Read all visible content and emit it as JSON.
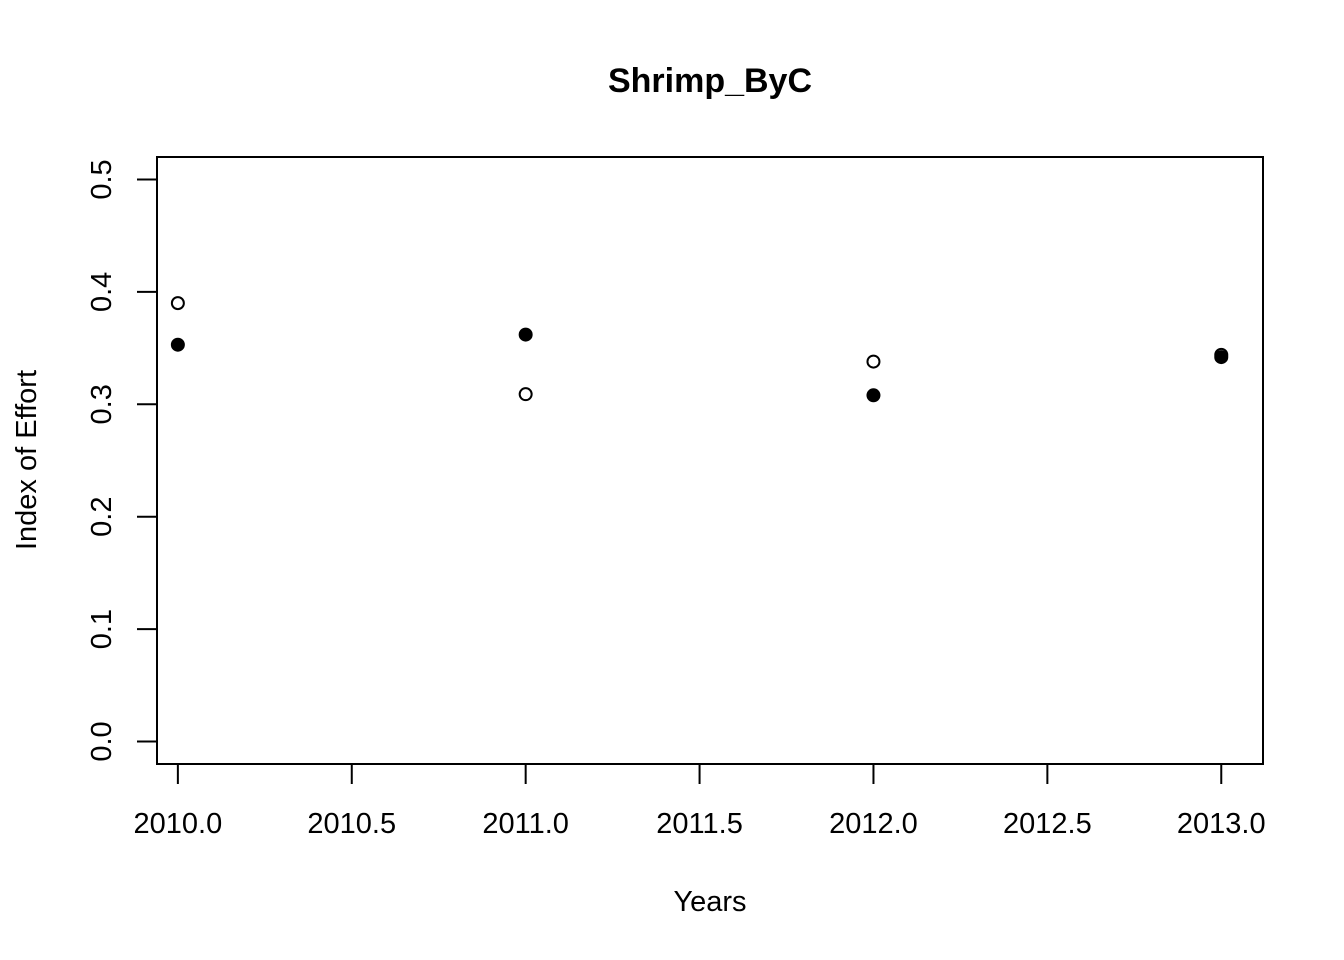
{
  "chart_data": {
    "type": "scatter",
    "title": "Shrimp_ByC",
    "xlabel": "Years",
    "ylabel": "Index of Effort",
    "xlim": [
      2009.94,
      2013.12
    ],
    "ylim": [
      -0.02,
      0.52
    ],
    "x_ticks": [
      2010.0,
      2010.5,
      2011.0,
      2011.5,
      2012.0,
      2012.5,
      2013.0
    ],
    "x_tick_labels": [
      "2010.0",
      "2010.5",
      "2011.0",
      "2011.5",
      "2012.0",
      "2012.5",
      "2013.0"
    ],
    "y_ticks": [
      0.0,
      0.1,
      0.2,
      0.3,
      0.4,
      0.5
    ],
    "y_tick_labels": [
      "0.0",
      "0.1",
      "0.2",
      "0.3",
      "0.4",
      "0.5"
    ],
    "grid": false,
    "legend": "none",
    "series": [
      {
        "marker": "open-circle",
        "color": "#000000",
        "x": [
          2010,
          2011,
          2012,
          2013
        ],
        "y": [
          0.39,
          0.309,
          0.338,
          0.344
        ]
      },
      {
        "marker": "filled-circle",
        "color": "#000000",
        "x": [
          2010,
          2011,
          2012,
          2013
        ],
        "y": [
          0.353,
          0.362,
          0.308,
          0.342
        ]
      }
    ]
  }
}
